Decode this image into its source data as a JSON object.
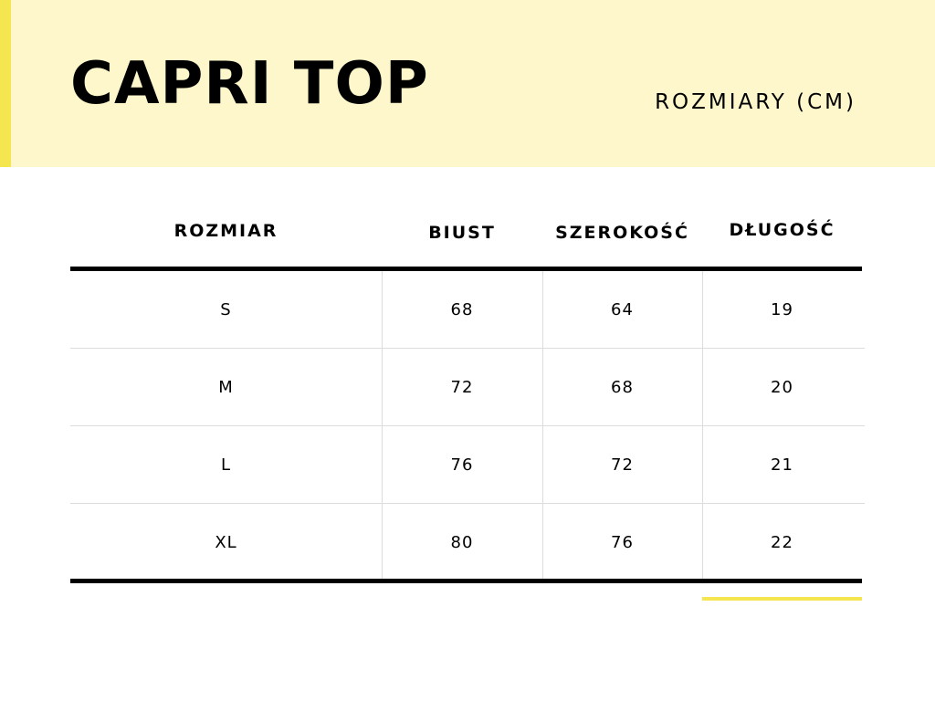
{
  "header": {
    "title": "CAPRI TOP",
    "subtitle": "ROZMIARY (CM)"
  },
  "table": {
    "columns": [
      "ROZMIAR",
      "BIUST",
      "SZEROKOŚĆ",
      "DŁUGOŚĆ"
    ],
    "rows": [
      [
        "S",
        "68",
        "64",
        "19"
      ],
      [
        "M",
        "72",
        "68",
        "20"
      ],
      [
        "L",
        "76",
        "72",
        "21"
      ],
      [
        "XL",
        "80",
        "76",
        "22"
      ]
    ]
  },
  "colors": {
    "accent": "#f5e64f",
    "band": "#fdf7cb"
  }
}
